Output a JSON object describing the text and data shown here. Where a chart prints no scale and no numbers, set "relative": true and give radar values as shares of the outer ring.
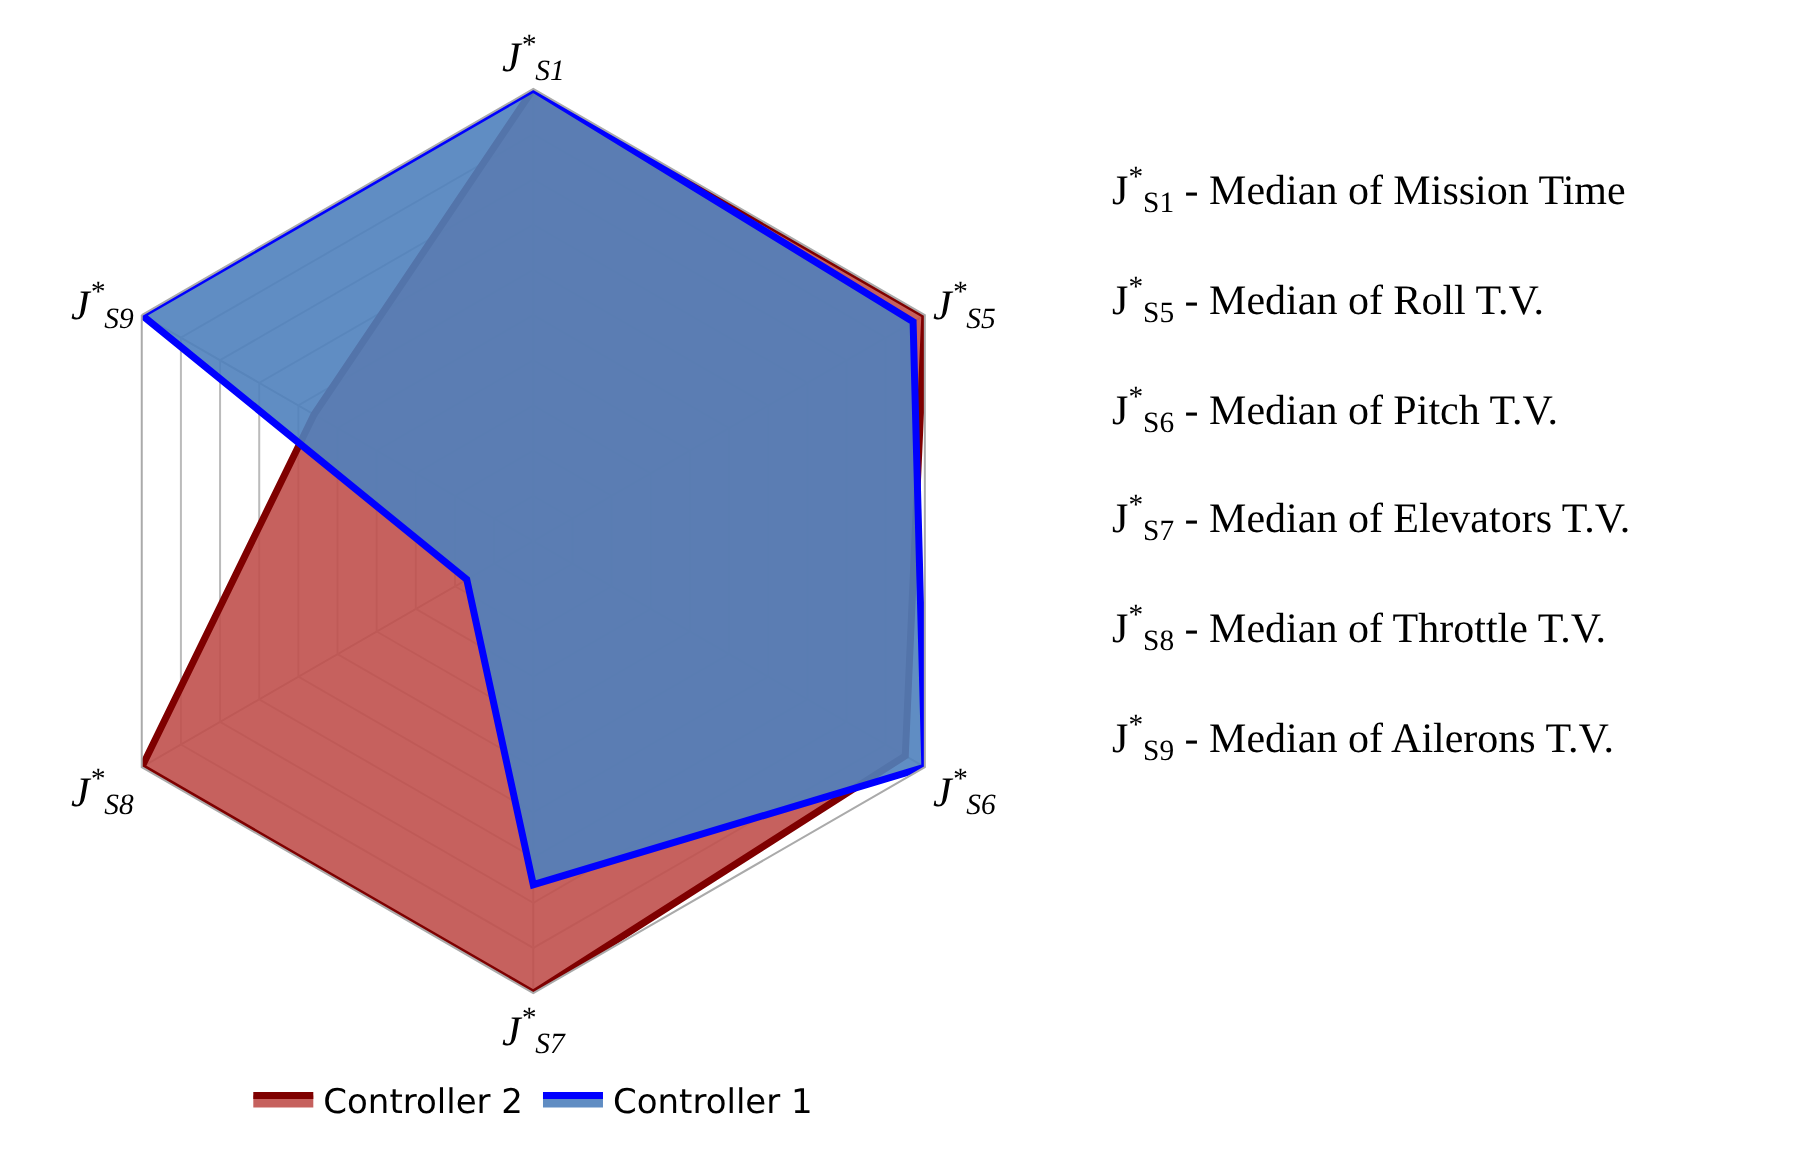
{
  "chart_data": {
    "type": "radar",
    "relative": true,
    "grid": true,
    "legend": "bottom",
    "categories": [
      "J$^{*}$$_{S1}$",
      "J$^{*}$$_{S5}$",
      "J$^{*}$$_{S6}$",
      "J$^{*}$$_{S7}$",
      "J$^{*}$$_{S8}$",
      "J$^{*}$$_{S9}$"
    ],
    "series": [
      {
        "name": "Controller 2",
        "color": "#7f0000",
        "values": [
          1,
          1,
          0.95,
          1,
          1,
          0.56
        ]
      },
      {
        "name": "Controller 1",
        "color": "#0000ff",
        "values": [
          1,
          0.97,
          1,
          0.76,
          0.17,
          1
        ]
      }
    ],
    "annotations": [
      "J$^{*}$$_{S1}$ - Median of Mission Time",
      "J$^{*}$$_{S5}$ - Median of Roll T.V.",
      "J$^{*}$$_{S6}$ - Median of Pitch T.V.",
      "J$^{*}$$_{S7}$ - Median of Elevators T.V.",
      "J$^{*}$$_{S8}$ - Median of Throttle T.V.",
      "J$^{*}$$_{S9}$ - Median of Ailerons T.V."
    ]
  }
}
